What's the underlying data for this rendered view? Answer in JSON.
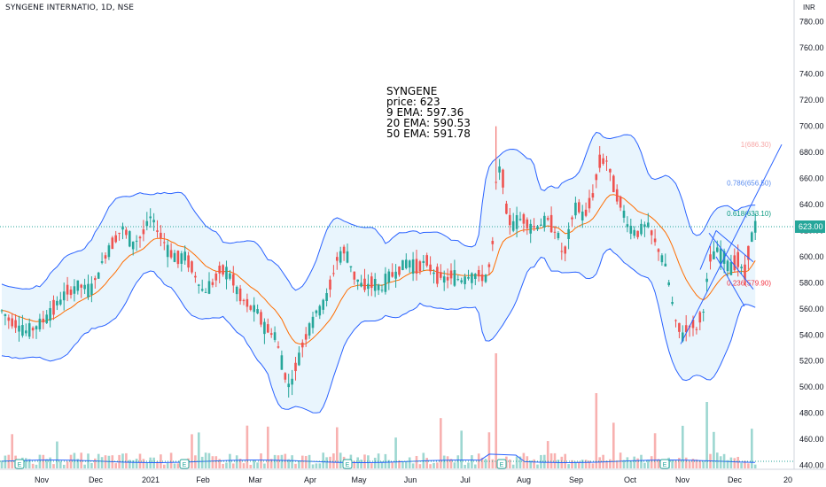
{
  "header": {
    "symbol_line": "SYNGENE INTERNATIO, 1D, NSE",
    "currency": "INR"
  },
  "info_box": {
    "name": "SYNGENE",
    "price": "price: 623",
    "ema9": "9 EMA: 597.36",
    "ema20": "20 EMA: 590.53",
    "ema50": "50 EMA: 591.78"
  },
  "chart_data": {
    "type": "candlestick",
    "x_axis_labels": [
      "Nov",
      "Dec",
      "2021",
      "Feb",
      "Mar",
      "Apr",
      "May",
      "Jun",
      "Jul",
      "Aug",
      "Sep",
      "Oct",
      "Nov",
      "Dec",
      "20"
    ],
    "y_axis_ticks": [
      440,
      460,
      480,
      500,
      520,
      540,
      560,
      580,
      600,
      620,
      640,
      660,
      680,
      700,
      720,
      740,
      760,
      780
    ],
    "ylim": [
      437,
      790
    ],
    "last_price_label": "623.00",
    "last_price": 623,
    "fib_levels": [
      {
        "label": "1(686.30)",
        "value": 686.3,
        "color": "#f7a8a8"
      },
      {
        "label": "0.786(656.50)",
        "value": 656.5,
        "color": "#5b8def"
      },
      {
        "label": "0.618(633.10)",
        "value": 633.1,
        "color": "#089981"
      },
      {
        "label": "0.236(579.90)",
        "value": 579.9,
        "color": "#f23645"
      }
    ],
    "series_close": [
      {
        "x": 0,
        "y": 560
      },
      {
        "x": 10,
        "y": 552
      },
      {
        "x": 20,
        "y": 548
      },
      {
        "x": 30,
        "y": 542
      },
      {
        "x": 45,
        "y": 548
      },
      {
        "x": 60,
        "y": 560
      },
      {
        "x": 75,
        "y": 572
      },
      {
        "x": 90,
        "y": 578
      },
      {
        "x": 100,
        "y": 574
      },
      {
        "x": 108,
        "y": 582
      },
      {
        "x": 118,
        "y": 600
      },
      {
        "x": 128,
        "y": 612
      },
      {
        "x": 138,
        "y": 622
      },
      {
        "x": 150,
        "y": 610
      },
      {
        "x": 160,
        "y": 616
      },
      {
        "x": 170,
        "y": 630
      },
      {
        "x": 180,
        "y": 618
      },
      {
        "x": 190,
        "y": 605
      },
      {
        "x": 200,
        "y": 598
      },
      {
        "x": 210,
        "y": 600
      },
      {
        "x": 220,
        "y": 586
      },
      {
        "x": 230,
        "y": 572
      },
      {
        "x": 240,
        "y": 580
      },
      {
        "x": 250,
        "y": 590
      },
      {
        "x": 260,
        "y": 586
      },
      {
        "x": 270,
        "y": 570
      },
      {
        "x": 280,
        "y": 562
      },
      {
        "x": 290,
        "y": 558
      },
      {
        "x": 300,
        "y": 545
      },
      {
        "x": 310,
        "y": 540
      },
      {
        "x": 318,
        "y": 520
      },
      {
        "x": 325,
        "y": 500
      },
      {
        "x": 332,
        "y": 510
      },
      {
        "x": 340,
        "y": 530
      },
      {
        "x": 350,
        "y": 548
      },
      {
        "x": 360,
        "y": 560
      },
      {
        "x": 370,
        "y": 570
      },
      {
        "x": 380,
        "y": 598
      },
      {
        "x": 390,
        "y": 605
      },
      {
        "x": 400,
        "y": 585
      },
      {
        "x": 410,
        "y": 576
      },
      {
        "x": 420,
        "y": 580
      },
      {
        "x": 430,
        "y": 575
      },
      {
        "x": 440,
        "y": 585
      },
      {
        "x": 450,
        "y": 590
      },
      {
        "x": 460,
        "y": 596
      },
      {
        "x": 470,
        "y": 592
      },
      {
        "x": 480,
        "y": 596
      },
      {
        "x": 490,
        "y": 588
      },
      {
        "x": 500,
        "y": 582
      },
      {
        "x": 510,
        "y": 585
      },
      {
        "x": 520,
        "y": 582
      },
      {
        "x": 530,
        "y": 586
      },
      {
        "x": 540,
        "y": 585
      },
      {
        "x": 550,
        "y": 584
      },
      {
        "x": 556,
        "y": 610
      },
      {
        "x": 560,
        "y": 660
      },
      {
        "x": 566,
        "y": 670
      },
      {
        "x": 572,
        "y": 630
      },
      {
        "x": 580,
        "y": 625
      },
      {
        "x": 590,
        "y": 630
      },
      {
        "x": 600,
        "y": 622
      },
      {
        "x": 610,
        "y": 625
      },
      {
        "x": 620,
        "y": 628
      },
      {
        "x": 630,
        "y": 615
      },
      {
        "x": 636,
        "y": 598
      },
      {
        "x": 642,
        "y": 618
      },
      {
        "x": 650,
        "y": 640
      },
      {
        "x": 660,
        "y": 630
      },
      {
        "x": 670,
        "y": 650
      },
      {
        "x": 676,
        "y": 672
      },
      {
        "x": 684,
        "y": 675
      },
      {
        "x": 690,
        "y": 660
      },
      {
        "x": 700,
        "y": 640
      },
      {
        "x": 710,
        "y": 622
      },
      {
        "x": 720,
        "y": 618
      },
      {
        "x": 730,
        "y": 625
      },
      {
        "x": 740,
        "y": 610
      },
      {
        "x": 750,
        "y": 595
      },
      {
        "x": 756,
        "y": 575
      },
      {
        "x": 762,
        "y": 550
      },
      {
        "x": 770,
        "y": 540
      },
      {
        "x": 778,
        "y": 548
      },
      {
        "x": 786,
        "y": 545
      },
      {
        "x": 794,
        "y": 560
      },
      {
        "x": 800,
        "y": 595
      },
      {
        "x": 808,
        "y": 605
      },
      {
        "x": 816,
        "y": 600
      },
      {
        "x": 824,
        "y": 592
      },
      {
        "x": 832,
        "y": 598
      },
      {
        "x": 840,
        "y": 585
      },
      {
        "x": 846,
        "y": 610
      },
      {
        "x": 852,
        "y": 623
      }
    ]
  }
}
